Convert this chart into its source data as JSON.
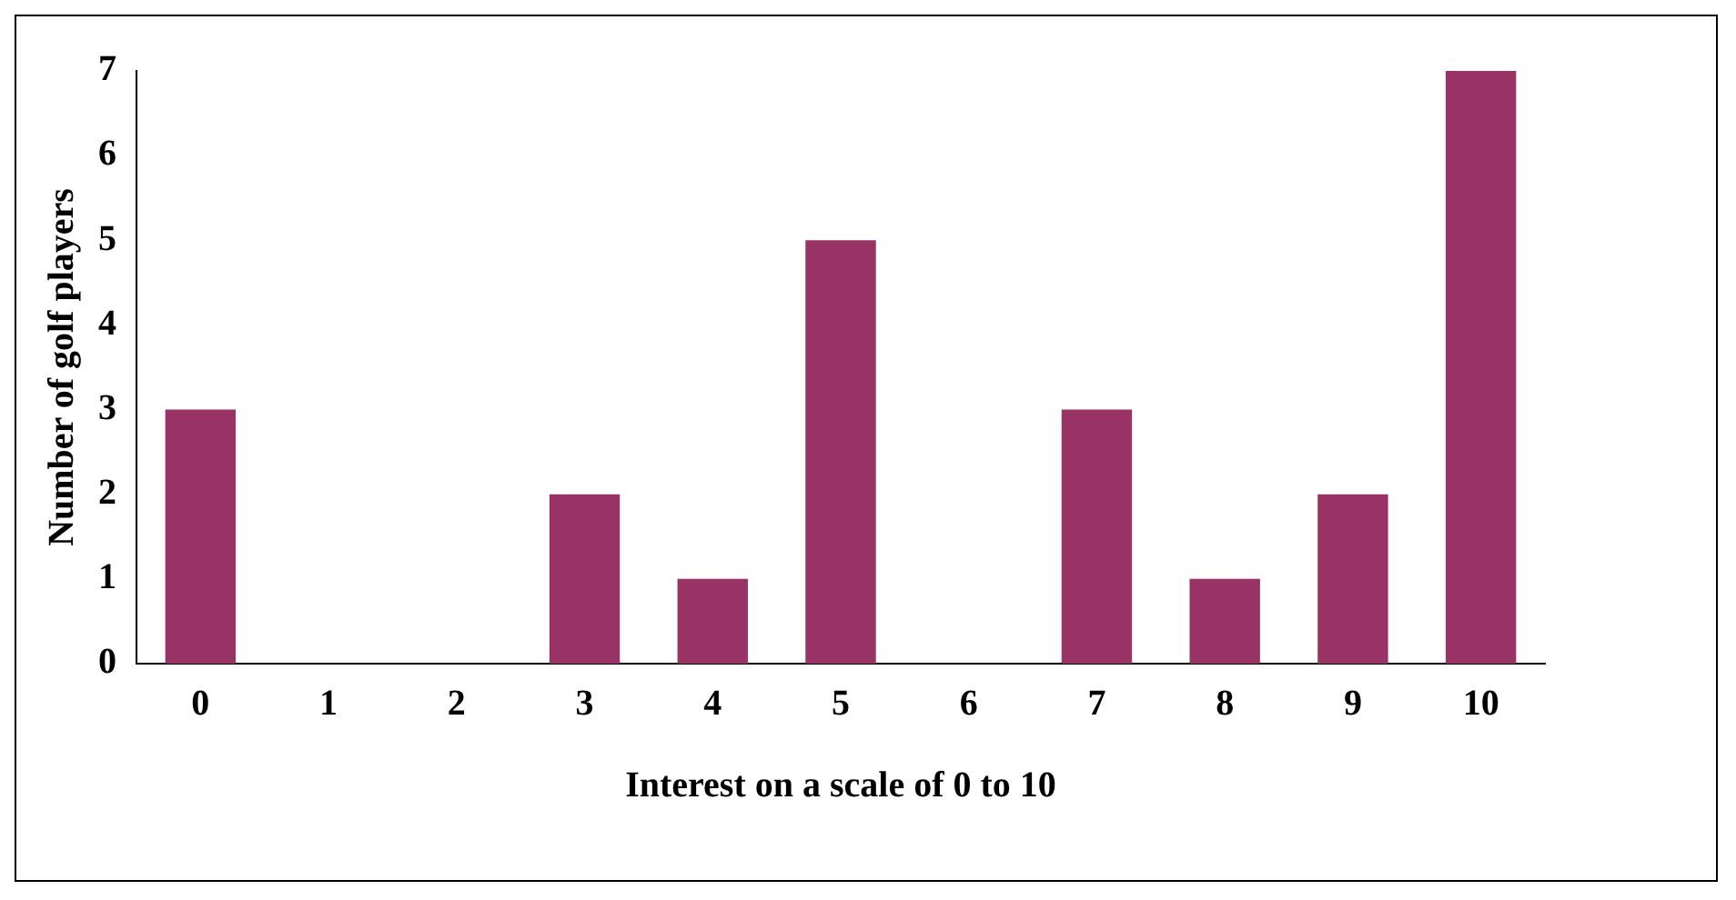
{
  "chart_data": {
    "type": "bar",
    "xlabel": "Interest on a scale of 0 to 10",
    "ylabel": "Number of golf players",
    "categories": [
      "0",
      "1",
      "2",
      "3",
      "4",
      "5",
      "6",
      "7",
      "8",
      "9",
      "10"
    ],
    "values": [
      3,
      0,
      0,
      2,
      1,
      5,
      0,
      3,
      1,
      2,
      7
    ],
    "color": "#993366",
    "ylim": [
      0,
      7
    ],
    "yticks": [
      0,
      1,
      2,
      3,
      4,
      5,
      6,
      7
    ],
    "grid": false,
    "legend": false
  }
}
